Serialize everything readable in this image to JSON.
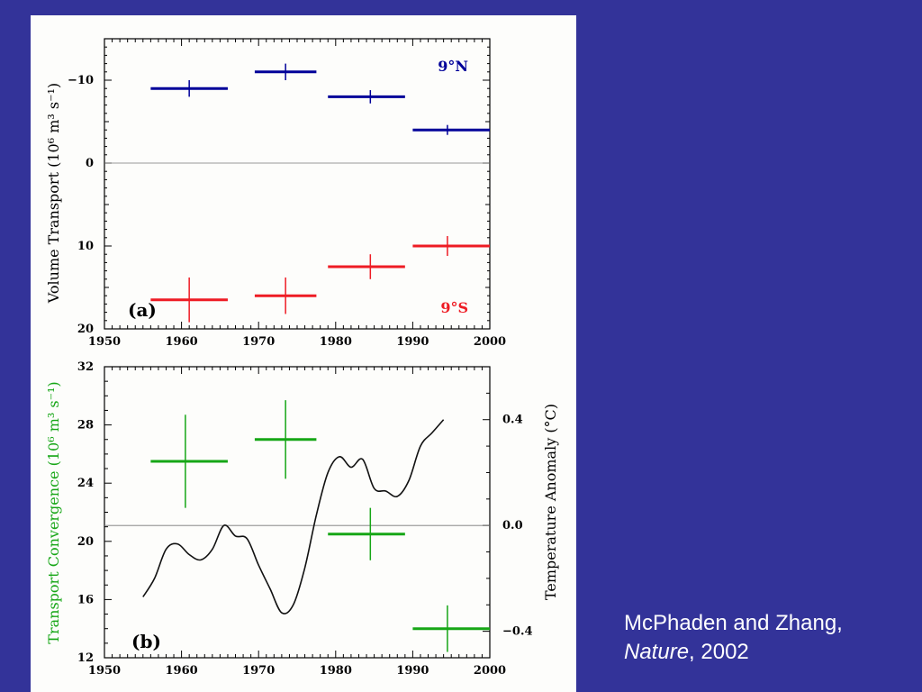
{
  "citation": {
    "authors": "McPhaden and Zhang,",
    "journal": "Nature",
    "year": ", 2002"
  },
  "colors": {
    "background": "#333399",
    "north": "#000099",
    "south": "#ee1c24",
    "convergence": "#16a616",
    "temperature": "#111111"
  },
  "chart_data": [
    {
      "type": "scatter",
      "panel_label": "(a)",
      "ylabel": "Volume Transport (10⁶ m³ s⁻¹)",
      "xlim": [
        1950,
        2000
      ],
      "ylim_top": -15,
      "ylim_bottom": 20,
      "x_ticks": [
        "1950",
        "1960",
        "1970",
        "1980",
        "1990",
        "2000"
      ],
      "y_ticks": [
        "−10",
        "0",
        "10",
        "20"
      ],
      "zero_line": true,
      "series": [
        {
          "name": "9°N",
          "color": "#000099",
          "points": [
            {
              "x_start": 1956,
              "x_end": 1966,
              "x": 1961,
              "y": -9.0,
              "err": 1.0
            },
            {
              "x_start": 1969.5,
              "x_end": 1977.5,
              "x": 1973.5,
              "y": -11.0,
              "err": 1.0
            },
            {
              "x_start": 1979,
              "x_end": 1989,
              "x": 1984.5,
              "y": -8.0,
              "err": 0.8
            },
            {
              "x_start": 1990,
              "x_end": 2000,
              "x": 1994.5,
              "y": -4.0,
              "err": 0.6
            }
          ]
        },
        {
          "name": "9°S",
          "color": "#ee1c24",
          "points": [
            {
              "x_start": 1956,
              "x_end": 1966,
              "x": 1961,
              "y": 16.5,
              "err": 2.7
            },
            {
              "x_start": 1969.5,
              "x_end": 1977.5,
              "x": 1973.5,
              "y": 16.0,
              "err": 2.2
            },
            {
              "x_start": 1979,
              "x_end": 1989,
              "x": 1984.5,
              "y": 12.5,
              "err": 1.5
            },
            {
              "x_start": 1990,
              "x_end": 2000,
              "x": 1994.5,
              "y": 10.0,
              "err": 1.2
            }
          ]
        }
      ]
    },
    {
      "type": "line",
      "panel_label": "(b)",
      "ylabel": "Transport Convergence (10⁶ m³ s⁻¹)",
      "y2label": "Temperature Anomaly (°C)",
      "xlim": [
        1950,
        2000
      ],
      "ylim": [
        12,
        32
      ],
      "y2lim": [
        -0.5,
        0.6
      ],
      "x_ticks": [
        "1950",
        "1960",
        "1970",
        "1980",
        "1990",
        "2000"
      ],
      "y_ticks": [
        "12",
        "16",
        "20",
        "24",
        "28",
        "32"
      ],
      "y2_ticks": [
        "−0.4",
        "0.0",
        "0.4"
      ],
      "zero_line_y2": 0.0,
      "convergence": {
        "name": "Transport Convergence",
        "color": "#16a616",
        "points": [
          {
            "x_start": 1956,
            "x_end": 1966,
            "x": 1960.5,
            "y": 25.5,
            "err": 3.2
          },
          {
            "x_start": 1969.5,
            "x_end": 1977.5,
            "x": 1973.5,
            "y": 27.0,
            "err": 2.7
          },
          {
            "x_start": 1979,
            "x_end": 1989,
            "x": 1984.5,
            "y": 20.5,
            "err": 1.8
          },
          {
            "x_start": 1990,
            "x_end": 2000,
            "x": 1994.5,
            "y": 14.0,
            "err": 1.6
          }
        ]
      },
      "temperature": {
        "name": "Temperature Anomaly",
        "color": "#111111",
        "x": [
          1955.0,
          1956.5,
          1958.0,
          1959.5,
          1961.0,
          1962.5,
          1964.0,
          1965.5,
          1967.0,
          1968.5,
          1970.0,
          1971.5,
          1973.0,
          1974.5,
          1976.0,
          1977.5,
          1979.0,
          1980.5,
          1982.0,
          1983.5,
          1985.0,
          1986.5,
          1988.0,
          1989.5,
          1991.0,
          1992.5,
          1994.0
        ],
        "y": [
          -0.27,
          -0.2,
          -0.09,
          -0.07,
          -0.11,
          -0.13,
          -0.09,
          0.0,
          -0.04,
          -0.05,
          -0.15,
          -0.24,
          -0.33,
          -0.3,
          -0.16,
          0.04,
          0.2,
          0.26,
          0.22,
          0.25,
          0.14,
          0.13,
          0.11,
          0.17,
          0.3,
          0.35,
          0.4
        ]
      }
    }
  ]
}
